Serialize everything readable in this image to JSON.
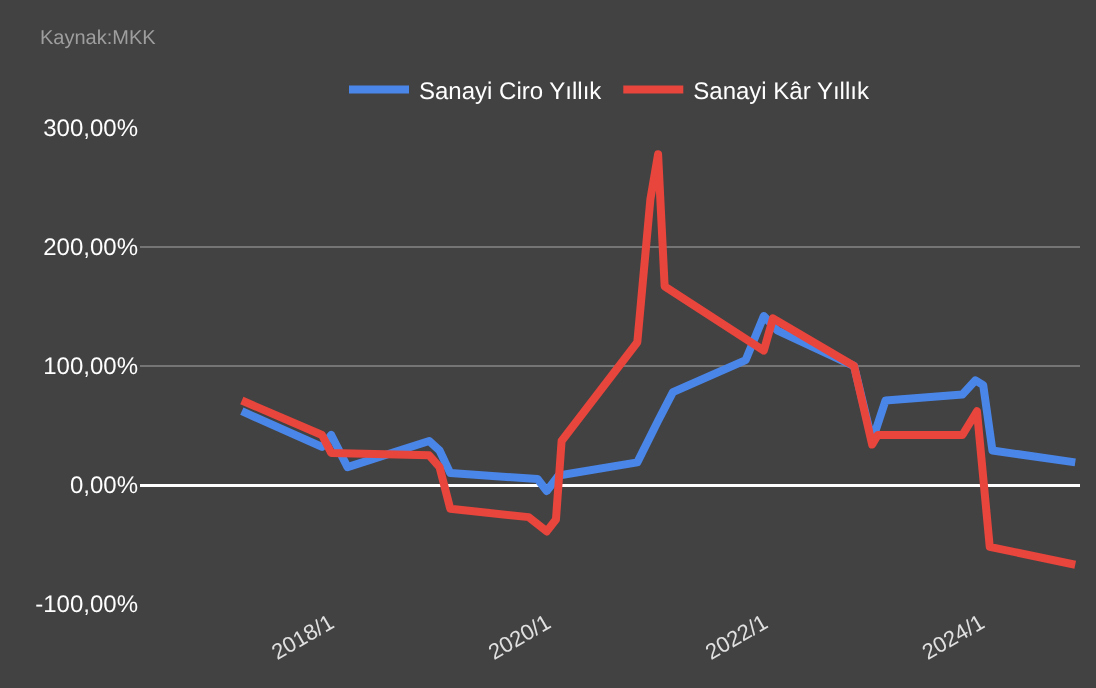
{
  "chart_data": {
    "type": "line",
    "annotations": [
      "Kaynak:MKK"
    ],
    "series": [
      {
        "name": "Sanayi Ciro Yıllık",
        "color": "#4a86e8",
        "x": [
          "2017-03-10",
          "2017-12-05",
          "2018-01-05",
          "2018-03-01",
          "2018-12-01",
          "2019-01-05",
          "2019-02-10",
          "2019-12-01",
          "2020-01-01",
          "2020-02-10",
          "2020-11-01",
          "2021-01-10",
          "2021-03-01",
          "2021-11-01",
          "2022-01-01",
          "2022-02-15",
          "2022-11-01",
          "2023-01-01",
          "2023-02-15",
          "2023-11-01",
          "2023-12-15",
          "2024-01-10",
          "2024-02-10",
          "2024-11-15"
        ],
        "values": [
          62,
          32,
          42,
          15,
          37,
          29,
          10,
          5,
          -5,
          8,
          19,
          54,
          78,
          105,
          142,
          130,
          100,
          37,
          71,
          76,
          88,
          84,
          29,
          19
        ]
      },
      {
        "name": "Sanayi Kâr Yıllık",
        "color": "#e8453c",
        "x": [
          "2017-03-10",
          "2017-12-05",
          "2018-01-05",
          "2018-12-01",
          "2019-01-05",
          "2019-02-10",
          "2019-11-01",
          "2020-01-01",
          "2020-02-01",
          "2020-02-20",
          "2020-11-01",
          "2020-12-15",
          "2021-01-10",
          "2021-02-01",
          "2022-01-01",
          "2022-02-01",
          "2022-11-01",
          "2023-01-01",
          "2023-01-20",
          "2023-11-01",
          "2023-12-20",
          "2024-02-01",
          "2024-11-15"
        ],
        "values": [
          71,
          42,
          27,
          25,
          15,
          -20,
          -27,
          -39,
          -29,
          37,
          120,
          240,
          278,
          167,
          113,
          140,
          100,
          34,
          42,
          42,
          62,
          -52,
          -67
        ]
      }
    ],
    "xlim": [
      "2016-04-01",
      "2024-12-01"
    ],
    "xticks": [
      {
        "value": "2018-01-01",
        "label": "2018/1"
      },
      {
        "value": "2020-01-01",
        "label": "2020/1"
      },
      {
        "value": "2022-01-01",
        "label": "2022/1"
      },
      {
        "value": "2024-01-01",
        "label": "2024/1"
      }
    ],
    "ylim": [
      -100,
      300
    ],
    "yticks": [
      {
        "value": -100,
        "label": "-100,00%"
      },
      {
        "value": 0,
        "label": "0,00%"
      },
      {
        "value": 100,
        "label": "100,00%"
      },
      {
        "value": 200,
        "label": "200,00%"
      },
      {
        "value": 300,
        "label": "300,00%"
      }
    ],
    "grid": "y",
    "legend": "top",
    "marker": "none",
    "line_style": "solid"
  }
}
